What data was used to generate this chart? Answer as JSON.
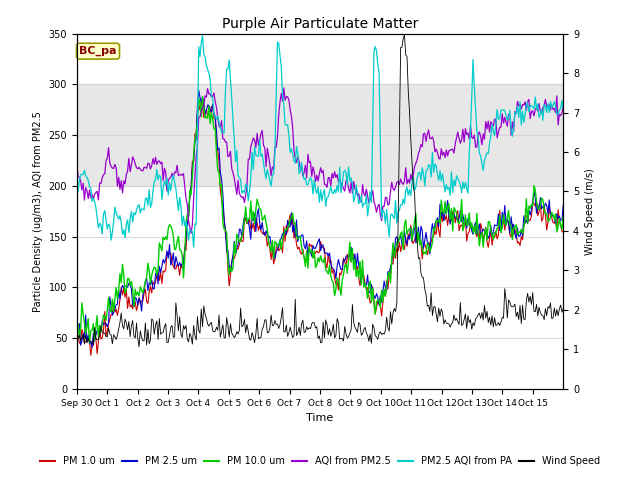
{
  "title": "Purple Air Particulate Matter",
  "ylabel_left": "Particle Density (ug/m3), AQI from PM2.5",
  "ylabel_right": "Wind Speed (m/s)",
  "xlabel": "Time",
  "ylim_left": [
    0,
    350
  ],
  "ylim_right": [
    0.0,
    9.0
  ],
  "yticks_left": [
    0,
    50,
    100,
    150,
    200,
    250,
    300,
    350
  ],
  "yticks_right": [
    0.0,
    1.0,
    2.0,
    3.0,
    4.0,
    5.0,
    6.0,
    7.0,
    8.0,
    9.0
  ],
  "x_tick_labels": [
    "Sep 30",
    "Oct 1",
    "Oct 2",
    "Oct 3",
    "Oct 4",
    "Oct 5",
    "Oct 6",
    "Oct 7",
    "Oct 8",
    "Oct 9",
    "Oct 10",
    "Oct 11",
    "Oct 12",
    "Oct 13",
    "Oct 14",
    "Oct 15"
  ],
  "colors": {
    "pm1": "#cc0000",
    "pm25": "#0000cc",
    "pm10": "#00cc00",
    "aqi_pm25": "#9900cc",
    "aqi_pa": "#00cccc",
    "wind": "#000000"
  },
  "legend_labels": [
    "PM 1.0 um",
    "PM 2.5 um",
    "PM 10.0 um",
    "AQI from PM2.5",
    "PM2.5 AQI from PA",
    "Wind Speed"
  ],
  "bc_pa_label": "BC_pa",
  "shaded_region": [
    200,
    300
  ],
  "background_color": "#ffffff",
  "fig_width": 6.4,
  "fig_height": 4.8,
  "dpi": 100
}
